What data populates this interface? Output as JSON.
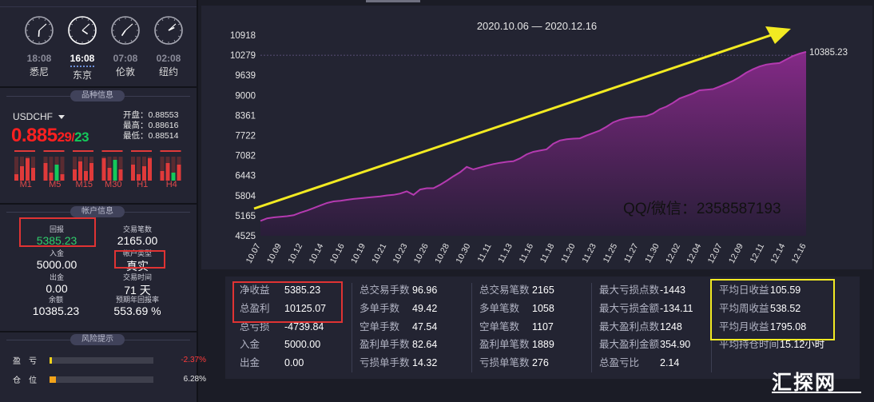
{
  "clocks": [
    {
      "time": "18:08",
      "city": "悉尼",
      "active": false,
      "h": 6,
      "m": 8
    },
    {
      "time": "16:08",
      "city": "东京",
      "active": true,
      "h": 4,
      "m": 8
    },
    {
      "time": "07:08",
      "city": "伦敦",
      "active": false,
      "h": 7,
      "m": 8
    },
    {
      "time": "02:08",
      "city": "纽约",
      "active": false,
      "h": 2,
      "m": 8
    }
  ],
  "instrument": {
    "header": "品种信息",
    "symbol": "USDCHF",
    "price_main": "0.885",
    "price_bid_tail": "29",
    "price_sep": "/",
    "price_ask_tail": "23",
    "open": "开盘：0.88553",
    "high": "最高：0.88616",
    "low": "最低：0.88514",
    "timeframes": [
      "M1",
      "M5",
      "M15",
      "M30",
      "H1",
      "H4"
    ],
    "bar_color_red": "#e03a3a",
    "bar_color_green": "#14c85a"
  },
  "account": {
    "header": "帐户信息",
    "return_label": "回报",
    "return_value": "5385.23",
    "trades_label": "交易笔数",
    "trades_value": "2165.00",
    "deposit_label": "入金",
    "deposit_value": "5000.00",
    "acct_type_label": "帐户类型",
    "acct_type_value": "真实",
    "withdraw_label": "出金",
    "withdraw_value": "0.00",
    "time_label": "交易时间",
    "time_value": "71 天",
    "balance_label": "余额",
    "balance_value": "10385.23",
    "annual_label": "预期年回报率",
    "annual_value": "553.69 %"
  },
  "risk": {
    "header": "风险提示",
    "rows": [
      {
        "label": "盈　亏",
        "value": "-2.37%",
        "fill_pct": 2.37,
        "color": "#f2d21a",
        "value_color": "#ff3b3b"
      },
      {
        "label": "仓　位",
        "value": "6.28%",
        "fill_pct": 6.28,
        "color": "#f2a31a",
        "value_color": "#e6e6e6"
      }
    ]
  },
  "chart_data": {
    "type": "area",
    "title": "2020.10.06 — 2020.12.16",
    "end_label": "10385.23",
    "watermark_text": "QQ/微信：2358587193",
    "y_ticks": [
      4525,
      5165,
      5804,
      6443,
      7082,
      7722,
      8361,
      9000,
      9639,
      10279,
      10918
    ],
    "ylim": [
      4525,
      10918
    ],
    "x_ticks": [
      "10.07",
      "10.09",
      "10.12",
      "10.14",
      "10.16",
      "10.19",
      "10.21",
      "10.23",
      "10.26",
      "10.28",
      "10.30",
      "11.11",
      "11.13",
      "11.16",
      "11.18",
      "11.20",
      "11.23",
      "11.25",
      "11.27",
      "11.30",
      "12.02",
      "12.04",
      "12.07",
      "12.09",
      "12.11",
      "12.14",
      "12.16"
    ],
    "series": [
      {
        "values": [
          5000,
          5080,
          5110,
          5130,
          5150,
          5180,
          5260,
          5330,
          5410,
          5490,
          5570,
          5620,
          5640,
          5670,
          5700,
          5720,
          5740,
          5760,
          5780,
          5810,
          5830,
          5870,
          5940,
          5830,
          6000,
          6040,
          6040,
          6150,
          6280,
          6420,
          6550,
          6720,
          6640,
          6700,
          6760,
          6810,
          6850,
          6880,
          6900,
          6990,
          7120,
          7200,
          7240,
          7280,
          7460,
          7560,
          7600,
          7620,
          7630,
          7720,
          7800,
          7880,
          8000,
          8140,
          8220,
          8270,
          8300,
          8320,
          8340,
          8420,
          8560,
          8640,
          8760,
          8900,
          8980,
          9060,
          9160,
          9180,
          9200,
          9280,
          9370,
          9460,
          9580,
          9720,
          9830,
          9920,
          9980,
          10010,
          10030,
          10140,
          10250,
          10330,
          10385.23
        ],
        "color": "#b43ab0"
      }
    ],
    "grid": false
  },
  "arrow_color": "#f2ea22",
  "stats": {
    "col1": [
      {
        "label": "净收益",
        "value": "5385.23"
      },
      {
        "label": "总盈利",
        "value": "10125.07"
      },
      {
        "label": "总亏损",
        "value": "-4739.84"
      },
      {
        "label": "入金",
        "value": "5000.00"
      },
      {
        "label": "出金",
        "value": "0.00"
      }
    ],
    "col2": [
      {
        "label": "总交易手数",
        "value": "96.96"
      },
      {
        "label": "多单手数",
        "value": "49.42"
      },
      {
        "label": "空单手数",
        "value": "47.54"
      },
      {
        "label": "盈利单手数",
        "value": "82.64"
      },
      {
        "label": "亏损单手数",
        "value": "14.32"
      }
    ],
    "col3": [
      {
        "label": "总交易笔数",
        "value": "2165"
      },
      {
        "label": "多单笔数",
        "value": "1058"
      },
      {
        "label": "空单笔数",
        "value": "1107"
      },
      {
        "label": "盈利单笔数",
        "value": "1889"
      },
      {
        "label": "亏损单笔数",
        "value": "276"
      }
    ],
    "col4": [
      {
        "label": "最大亏损点数",
        "value": "-1443"
      },
      {
        "label": "最大亏损金额",
        "value": "-134.11"
      },
      {
        "label": "最大盈利点数",
        "value": "1248"
      },
      {
        "label": "最大盈利金额",
        "value": "354.90"
      },
      {
        "label": "总盈亏比",
        "value": "2.14"
      }
    ],
    "col5": [
      {
        "label": "平均日收益",
        "value": "105.59"
      },
      {
        "label": "平均周收益",
        "value": "538.52"
      },
      {
        "label": "平均月收益",
        "value": "1795.08"
      },
      {
        "label": "平均持仓时间",
        "value": "15.12小时"
      }
    ]
  },
  "watermark": "汇探网"
}
